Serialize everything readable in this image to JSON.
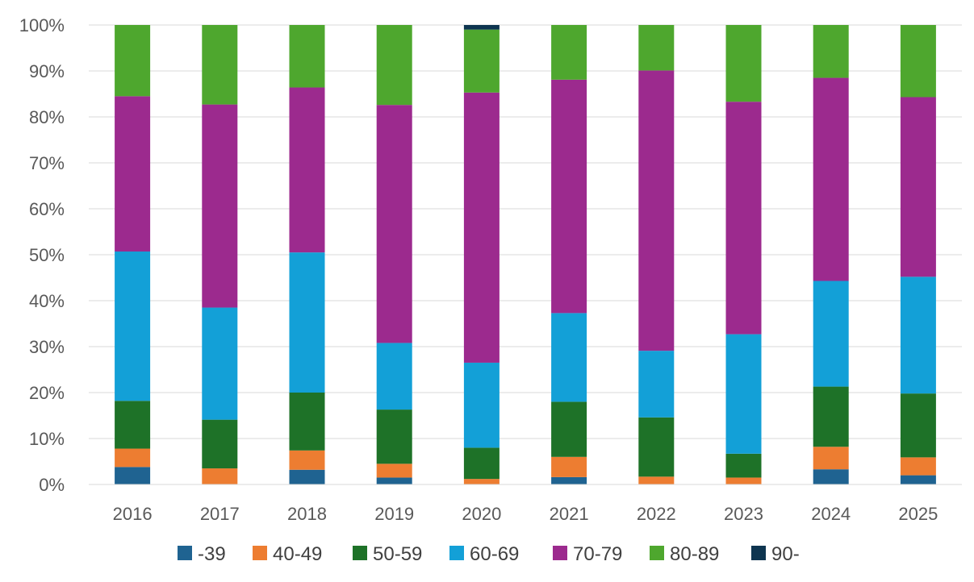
{
  "chart_data": {
    "type": "bar",
    "stacked": true,
    "percent": true,
    "title": "",
    "xlabel": "",
    "ylabel": "",
    "ylim": [
      0,
      100
    ],
    "y_ticks": [
      "0%",
      "10%",
      "20%",
      "30%",
      "40%",
      "50%",
      "60%",
      "70%",
      "80%",
      "90%",
      "100%"
    ],
    "grid": true,
    "legend_position": "bottom",
    "categories": [
      "2016",
      "2017",
      "2018",
      "2019",
      "2020",
      "2021",
      "2022",
      "2023",
      "2024",
      "2025"
    ],
    "series": [
      {
        "name": "-39",
        "color": "#1f6391",
        "values": [
          3.8,
          0,
          3.2,
          1.5,
          0,
          1.6,
          0,
          0,
          3.3,
          2.0
        ]
      },
      {
        "name": "40-49",
        "color": "#ed7d31",
        "values": [
          4.0,
          3.5,
          4.2,
          3.0,
          1.2,
          4.4,
          1.7,
          1.5,
          4.9,
          3.9
        ]
      },
      {
        "name": "50-59",
        "color": "#1e7228",
        "values": [
          10.4,
          10.6,
          12.6,
          11.8,
          6.8,
          12.0,
          12.9,
          5.2,
          13.1,
          13.9
        ]
      },
      {
        "name": "60-69",
        "color": "#13a0d7",
        "values": [
          32.5,
          24.4,
          30.5,
          14.5,
          18.5,
          19.3,
          14.5,
          26.0,
          23.0,
          25.4
        ]
      },
      {
        "name": "70-79",
        "color": "#9c2a8e",
        "values": [
          33.8,
          44.2,
          35.9,
          51.8,
          58.8,
          50.8,
          61.0,
          50.6,
          44.2,
          39.1
        ]
      },
      {
        "name": "80-89",
        "color": "#4ea72e",
        "values": [
          15.5,
          17.3,
          13.6,
          17.4,
          13.7,
          11.9,
          9.9,
          16.7,
          11.5,
          15.7
        ]
      },
      {
        "name": "90-",
        "color": "#0e3550",
        "values": [
          0,
          0,
          0,
          0,
          1.0,
          0,
          0,
          0,
          0,
          0
        ]
      }
    ]
  }
}
